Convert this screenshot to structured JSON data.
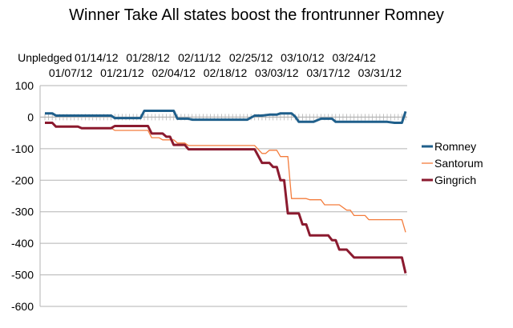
{
  "chart_data": {
    "type": "line",
    "title": "Winner Take All states boost the frontrunner Romney",
    "xlabel": "",
    "ylabel": "",
    "ylim": [
      -600,
      100
    ],
    "yticks": [
      100,
      0,
      -100,
      -200,
      -300,
      -400,
      -500,
      -600
    ],
    "grid": "horizontal",
    "legend_position": "right",
    "x_labels_top_row": [
      "Unpledged",
      "01/14/12",
      "01/28/12",
      "02/11/12",
      "02/25/12",
      "03/10/12",
      "03/24/12"
    ],
    "x_labels_bottom_row": [
      "01/07/12",
      "01/21/12",
      "02/04/12",
      "02/18/12",
      "03/03/12",
      "03/17/12",
      "03/31/12"
    ],
    "x_label_index_top": [
      0,
      14,
      28,
      42,
      56,
      70,
      84
    ],
    "x_label_index_bottom": [
      7,
      21,
      35,
      49,
      63,
      77,
      91
    ],
    "x_count": 99,
    "series": [
      {
        "name": "Romney",
        "color": "#1f5f8b",
        "points": [
          [
            0,
            12
          ],
          [
            2,
            12
          ],
          [
            3,
            5
          ],
          [
            5,
            5
          ],
          [
            18,
            5
          ],
          [
            19,
            -3
          ],
          [
            26,
            -3
          ],
          [
            27,
            20
          ],
          [
            35,
            20
          ],
          [
            36,
            -5
          ],
          [
            39,
            -5
          ],
          [
            40,
            -8
          ],
          [
            55,
            -8
          ],
          [
            57,
            5
          ],
          [
            59,
            5
          ],
          [
            61,
            8
          ],
          [
            63,
            8
          ],
          [
            64,
            12
          ],
          [
            67,
            12
          ],
          [
            68,
            2
          ],
          [
            69,
            -15
          ],
          [
            73,
            -15
          ],
          [
            75,
            -5
          ],
          [
            78,
            -5
          ],
          [
            79,
            -15
          ],
          [
            93,
            -15
          ],
          [
            95,
            -18
          ],
          [
            97,
            -18
          ],
          [
            98,
            18
          ]
        ]
      },
      {
        "name": "Santorum",
        "color": "#f47c3c",
        "points": [
          [
            0,
            -18
          ],
          [
            2,
            -18
          ],
          [
            3,
            -28
          ],
          [
            9,
            -28
          ],
          [
            10,
            -35
          ],
          [
            18,
            -35
          ],
          [
            19,
            -42
          ],
          [
            28,
            -42
          ],
          [
            29,
            -65
          ],
          [
            31,
            -65
          ],
          [
            32,
            -72
          ],
          [
            35,
            -72
          ],
          [
            36,
            -82
          ],
          [
            38,
            -82
          ],
          [
            39,
            -90
          ],
          [
            55,
            -90
          ],
          [
            57,
            -90
          ],
          [
            59,
            -115
          ],
          [
            60,
            -115
          ],
          [
            61,
            -105
          ],
          [
            63,
            -105
          ],
          [
            64,
            -125
          ],
          [
            66,
            -125
          ],
          [
            67,
            -258
          ],
          [
            71,
            -258
          ],
          [
            72,
            -262
          ],
          [
            75,
            -262
          ],
          [
            76,
            -278
          ],
          [
            80,
            -278
          ],
          [
            82,
            -295
          ],
          [
            83,
            -295
          ],
          [
            84,
            -312
          ],
          [
            87,
            -312
          ],
          [
            88,
            -325
          ],
          [
            96,
            -325
          ],
          [
            97,
            -325
          ],
          [
            98,
            -365
          ]
        ]
      },
      {
        "name": "Gingrich",
        "color": "#8b1a2f",
        "points": [
          [
            0,
            -18
          ],
          [
            2,
            -18
          ],
          [
            3,
            -30
          ],
          [
            9,
            -30
          ],
          [
            10,
            -35
          ],
          [
            18,
            -35
          ],
          [
            19,
            -28
          ],
          [
            28,
            -28
          ],
          [
            29,
            -52
          ],
          [
            32,
            -52
          ],
          [
            33,
            -62
          ],
          [
            34,
            -62
          ],
          [
            35,
            -88
          ],
          [
            38,
            -88
          ],
          [
            39,
            -102
          ],
          [
            55,
            -102
          ],
          [
            57,
            -102
          ],
          [
            59,
            -145
          ],
          [
            61,
            -145
          ],
          [
            62,
            -158
          ],
          [
            63,
            -158
          ],
          [
            64,
            -200
          ],
          [
            65,
            -200
          ],
          [
            66,
            -305
          ],
          [
            69,
            -305
          ],
          [
            70,
            -340
          ],
          [
            71,
            -340
          ],
          [
            72,
            -375
          ],
          [
            77,
            -375
          ],
          [
            78,
            -390
          ],
          [
            79,
            -390
          ],
          [
            80,
            -420
          ],
          [
            82,
            -420
          ],
          [
            84,
            -445
          ],
          [
            96,
            -445
          ],
          [
            97,
            -445
          ],
          [
            98,
            -495
          ]
        ]
      }
    ]
  }
}
